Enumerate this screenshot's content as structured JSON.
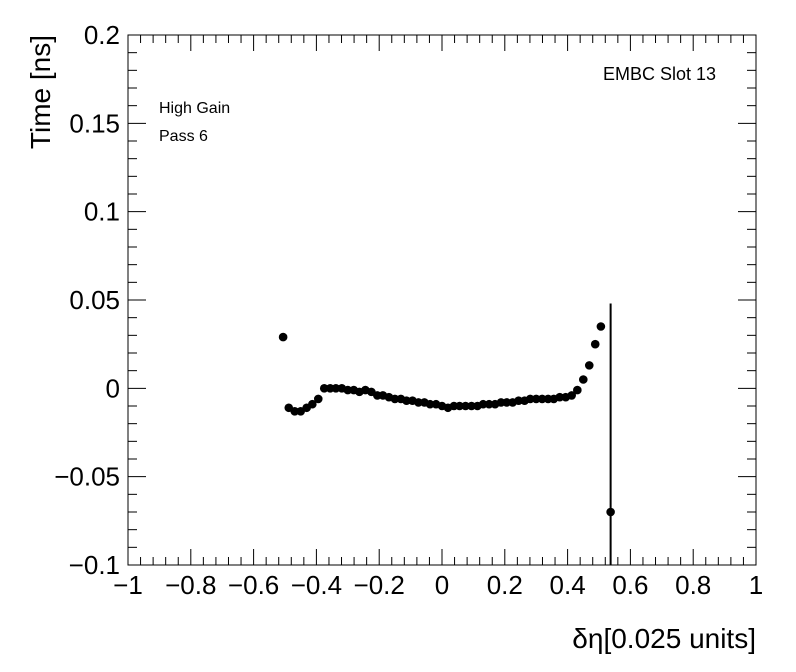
{
  "chart_data": {
    "type": "scatter",
    "xlabel": "δη[0.025 units]",
    "ylabel": "Time [ns]",
    "xlim": [
      -1,
      1
    ],
    "ylim": [
      -0.1,
      0.2
    ],
    "x_ticks": [
      -1,
      -0.8,
      -0.6,
      -0.4,
      -0.2,
      0,
      0.2,
      0.4,
      0.6,
      0.8,
      1
    ],
    "x_tick_labels": [
      "−1",
      "−0.8",
      "−0.6",
      "−0.4",
      "−0.2",
      "0",
      "0.2",
      "0.4",
      "0.6",
      "0.8",
      "1"
    ],
    "y_ticks": [
      -0.1,
      -0.05,
      0,
      0.05,
      0.1,
      0.15,
      0.2
    ],
    "y_tick_labels": [
      "−0.1",
      "−0.05",
      "0",
      "0.05",
      "0.1",
      "0.15",
      "0.2"
    ],
    "grid": false,
    "annotations": [
      "High Gain",
      "Pass 6",
      "EMBC Slot 13"
    ],
    "series": [
      {
        "marker_color": "#000000",
        "points": [
          [
            -0.506,
            0.029
          ],
          [
            -0.488,
            -0.011
          ],
          [
            -0.469,
            -0.013
          ],
          [
            -0.45,
            -0.013
          ],
          [
            -0.431,
            -0.011
          ],
          [
            -0.413,
            -0.009
          ],
          [
            -0.394,
            -0.006
          ],
          [
            -0.375,
            0.0
          ],
          [
            -0.356,
            0.0
          ],
          [
            -0.338,
            0.0
          ],
          [
            -0.319,
            0.0
          ],
          [
            -0.3,
            -0.001
          ],
          [
            -0.281,
            -0.001
          ],
          [
            -0.263,
            -0.002
          ],
          [
            -0.244,
            -0.001
          ],
          [
            -0.225,
            -0.002
          ],
          [
            -0.206,
            -0.004
          ],
          [
            -0.188,
            -0.004
          ],
          [
            -0.169,
            -0.005
          ],
          [
            -0.15,
            -0.006
          ],
          [
            -0.131,
            -0.006
          ],
          [
            -0.113,
            -0.007
          ],
          [
            -0.094,
            -0.007
          ],
          [
            -0.075,
            -0.008
          ],
          [
            -0.056,
            -0.008
          ],
          [
            -0.038,
            -0.009
          ],
          [
            -0.019,
            -0.009
          ],
          [
            0.0,
            -0.01
          ],
          [
            0.019,
            -0.011
          ],
          [
            0.038,
            -0.01
          ],
          [
            0.056,
            -0.01
          ],
          [
            0.075,
            -0.01
          ],
          [
            0.094,
            -0.01
          ],
          [
            0.113,
            -0.01
          ],
          [
            0.131,
            -0.009
          ],
          [
            0.15,
            -0.009
          ],
          [
            0.169,
            -0.009
          ],
          [
            0.188,
            -0.008
          ],
          [
            0.206,
            -0.008
          ],
          [
            0.225,
            -0.008
          ],
          [
            0.244,
            -0.007
          ],
          [
            0.263,
            -0.007
          ],
          [
            0.281,
            -0.006
          ],
          [
            0.3,
            -0.006
          ],
          [
            0.319,
            -0.006
          ],
          [
            0.338,
            -0.006
          ],
          [
            0.356,
            -0.006
          ],
          [
            0.375,
            -0.005
          ],
          [
            0.394,
            -0.005
          ],
          [
            0.413,
            -0.004
          ],
          [
            0.431,
            -0.001
          ],
          [
            0.45,
            0.005
          ],
          [
            0.469,
            0.013
          ],
          [
            0.488,
            0.025
          ],
          [
            0.506,
            0.035
          ],
          [
            0.537,
            -0.07
          ]
        ],
        "error_bar": {
          "x": 0.537,
          "y": -0.07,
          "low": -0.1,
          "high": 0.048
        }
      }
    ]
  }
}
